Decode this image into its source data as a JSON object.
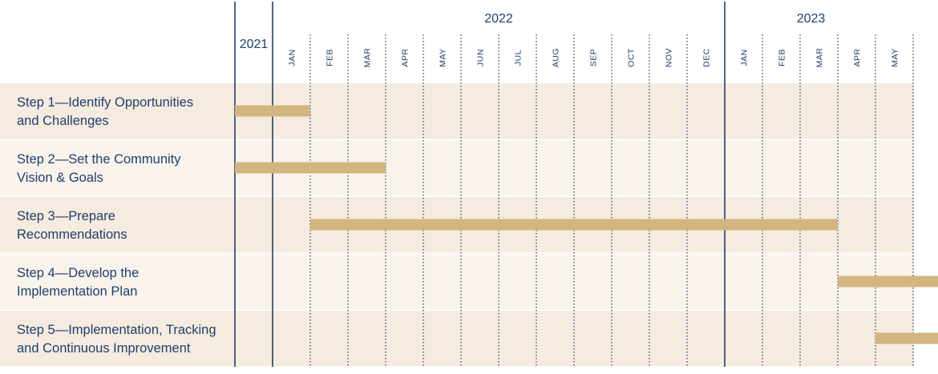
{
  "chart_data": {
    "type": "gantt",
    "periods": {
      "year_2021": "2021",
      "years": [
        "2022",
        "2023"
      ],
      "months": [
        "JAN",
        "FEB",
        "MAR",
        "APR",
        "MAY",
        "JUN",
        "JUL",
        "AUG",
        "SEP",
        "OCT",
        "NOV",
        "DEC",
        "JAN",
        "FEB",
        "MAR",
        "APR",
        "MAY"
      ]
    },
    "tasks": [
      {
        "label": "Step 1—Identify Opportunities\nand Challenges",
        "start": "2021",
        "end": "2022-01"
      },
      {
        "label": "Step 2—Set the Community\nVision & Goals",
        "start": "2021",
        "end": "2022-03"
      },
      {
        "label": "Step 3—Prepare\nRecommendations",
        "start": "2022-02",
        "end": "2023-03"
      },
      {
        "label": "Step 4—Develop the\nImplementation Plan",
        "start": "2023-04",
        "end": "2023-05"
      },
      {
        "label": "Step 5—Implementation, Tracking\nand Continuous Improvement",
        "start": "2023-05",
        "end": "2023-05"
      }
    ]
  },
  "colors": {
    "bar": "#d4b57f",
    "row_dark": "#f5ebdf",
    "row_light": "#f9f3ec",
    "line": "#1f3f6e",
    "text": "#1f3f6e"
  }
}
